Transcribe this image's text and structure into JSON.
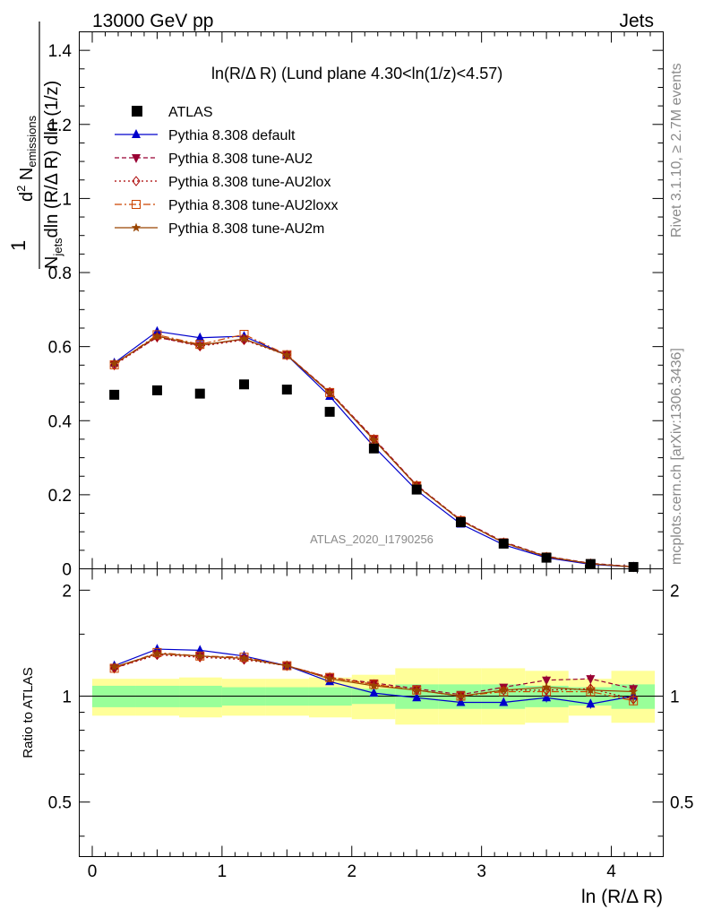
{
  "header": {
    "left": "13000 GeV pp",
    "right": "Jets"
  },
  "side_labels": {
    "rivet": "Rivet 3.1.10, ≥ 2.7M events",
    "mcplots": "mcplots.cern.ch [arXiv:1306.3436]"
  },
  "chart_data": {
    "type": "line",
    "title": "ln(R/Δ R) (Lund plane 4.30<ln(1/z)<4.57)",
    "analysis_id": "ATLAS_2020_I1790256",
    "xlabel": "ln (R/Δ R)",
    "ylabel_main": "1/N_jets dln (R/Δ R) dln (1/z) d² N_emissions",
    "ylabel_main_parts": {
      "one": "1",
      "njets_N": "N",
      "njets_sub": "jets",
      "den_rest": "dln (R/Δ R) dln (1/z)",
      "num_d2": "d",
      "num_sup2": "2",
      "num_N": " N",
      "num_sub": "emissions"
    },
    "ylabel_ratio": "Ratio to ATLAS",
    "xlim": [
      -0.1,
      4.4
    ],
    "ylim_main": [
      0,
      1.45
    ],
    "ylim_ratio": [
      0.35,
      2.3
    ],
    "x_ticks": [
      "0",
      "1",
      "2",
      "3",
      "4"
    ],
    "x_tick_values": [
      0,
      1,
      2,
      3,
      4
    ],
    "y_ticks_main": [
      "0",
      "0.2",
      "0.4",
      "0.6",
      "0.8",
      "1",
      "1.2",
      "1.4"
    ],
    "y_tick_values_main": [
      0,
      0.2,
      0.4,
      0.6,
      0.8,
      1.0,
      1.2,
      1.4
    ],
    "y_ticks_ratio": [
      "0.5",
      "1",
      "2"
    ],
    "y_tick_values_ratio": [
      0.5,
      1,
      2
    ],
    "x": [
      0.17,
      0.5,
      0.83,
      1.17,
      1.5,
      1.83,
      2.17,
      2.5,
      2.84,
      3.17,
      3.5,
      3.84,
      4.17
    ],
    "bin_edges": [
      0,
      0.335,
      0.67,
      1.0,
      1.335,
      1.67,
      2.0,
      2.335,
      2.67,
      3.0,
      3.335,
      3.67,
      4.0,
      4.335
    ],
    "data": {
      "name": "ATLAS",
      "values": [
        0.47,
        0.482,
        0.473,
        0.498,
        0.484,
        0.424,
        0.325,
        0.214,
        0.126,
        0.068,
        0.03,
        0.013,
        0.005
      ]
    },
    "series": [
      {
        "name": "Pythia 8.308 default",
        "color": "#0000cc",
        "dash": "",
        "marker": "triangle-up",
        "values": [
          0.556,
          0.641,
          0.624,
          0.628,
          0.577,
          0.466,
          0.33,
          0.212,
          0.121,
          0.065,
          0.03,
          0.012,
          0.005
        ],
        "ratio": [
          1.22,
          1.36,
          1.35,
          1.3,
          1.22,
          1.1,
          1.02,
          0.99,
          0.96,
          0.96,
          0.99,
          0.95,
          1.0
        ]
      },
      {
        "name": "Pythia 8.308 tune-AU2",
        "color": "#990033",
        "dash": "5,3",
        "marker": "triangle-down",
        "values": [
          0.553,
          0.625,
          0.603,
          0.62,
          0.578,
          0.478,
          0.352,
          0.226,
          0.132,
          0.073,
          0.034,
          0.015,
          0.006
        ],
        "ratio": [
          1.2,
          1.32,
          1.3,
          1.28,
          1.22,
          1.13,
          1.09,
          1.05,
          1.01,
          1.06,
          1.11,
          1.12,
          1.05
        ]
      },
      {
        "name": "Pythia 8.308 tune-AU2lox",
        "color": "#aa0000",
        "dash": "2,3",
        "marker": "diamond-open",
        "values": [
          0.55,
          0.626,
          0.601,
          0.618,
          0.577,
          0.477,
          0.35,
          0.225,
          0.131,
          0.071,
          0.032,
          0.014,
          0.005
        ],
        "ratio": [
          1.2,
          1.31,
          1.29,
          1.27,
          1.22,
          1.13,
          1.08,
          1.04,
          1.0,
          1.04,
          1.04,
          1.05,
          0.98
        ]
      },
      {
        "name": "Pythia 8.308 tune-AU2loxx",
        "color": "#cc4400",
        "dash": "8,3,2,3",
        "marker": "square-open",
        "values": [
          0.551,
          0.632,
          0.606,
          0.633,
          0.578,
          0.476,
          0.349,
          0.224,
          0.13,
          0.07,
          0.032,
          0.014,
          0.005
        ],
        "ratio": [
          1.2,
          1.33,
          1.3,
          1.29,
          1.22,
          1.13,
          1.08,
          1.04,
          1.0,
          1.03,
          1.03,
          1.03,
          0.97
        ]
      },
      {
        "name": "Pythia 8.308 tune-AU2m",
        "color": "#994400",
        "dash": "",
        "marker": "star",
        "values": [
          0.554,
          0.628,
          0.604,
          0.621,
          0.577,
          0.475,
          0.348,
          0.224,
          0.13,
          0.071,
          0.033,
          0.014,
          0.005
        ],
        "ratio": [
          1.21,
          1.32,
          1.3,
          1.28,
          1.22,
          1.12,
          1.07,
          1.04,
          1.0,
          1.04,
          1.06,
          1.04,
          1.03
        ]
      }
    ],
    "ratio_band_green": [
      [
        0.93,
        1.07
      ],
      [
        0.93,
        1.07
      ],
      [
        0.93,
        1.07
      ],
      [
        0.94,
        1.06
      ],
      [
        0.94,
        1.06
      ],
      [
        0.94,
        1.06
      ],
      [
        0.95,
        1.05
      ],
      [
        0.92,
        1.08
      ],
      [
        0.92,
        1.08
      ],
      [
        0.92,
        1.08
      ],
      [
        0.93,
        1.07
      ],
      [
        0.94,
        1.06
      ],
      [
        0.92,
        1.08
      ]
    ],
    "ratio_band_yellow": [
      [
        0.88,
        1.12
      ],
      [
        0.88,
        1.12
      ],
      [
        0.87,
        1.13
      ],
      [
        0.88,
        1.12
      ],
      [
        0.88,
        1.12
      ],
      [
        0.87,
        1.13
      ],
      [
        0.86,
        1.15
      ],
      [
        0.83,
        1.2
      ],
      [
        0.83,
        1.2
      ],
      [
        0.83,
        1.2
      ],
      [
        0.84,
        1.18
      ],
      [
        0.88,
        1.12
      ],
      [
        0.84,
        1.18
      ]
    ]
  }
}
